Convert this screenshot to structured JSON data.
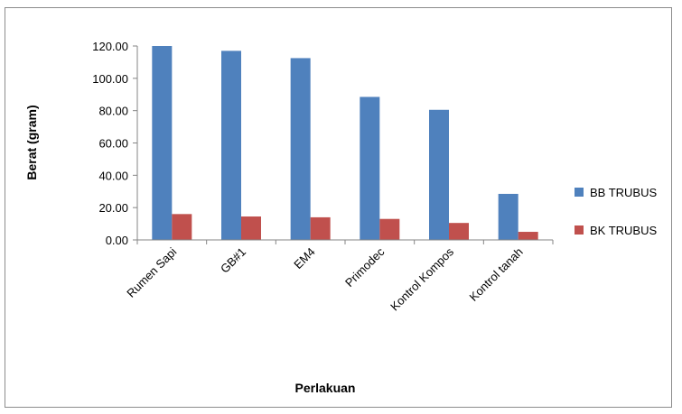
{
  "chart_data": {
    "type": "bar",
    "title": "",
    "xlabel": "Perlakuan",
    "ylabel": "Berat (gram)",
    "ylim": [
      0,
      120
    ],
    "yticks": [
      "0.00",
      "20.00",
      "40.00",
      "60.00",
      "80.00",
      "100.00",
      "120.00"
    ],
    "categories": [
      "Rumen Sapi",
      "GB#1",
      "EM4",
      "Primodec",
      "Kontrol Kompos",
      "Kontrol tanah"
    ],
    "series": [
      {
        "name": "BB TRUBUS",
        "color": "#4f81bd",
        "values": [
          120.0,
          117.0,
          112.5,
          88.5,
          80.5,
          28.5
        ]
      },
      {
        "name": "BK TRUBUS",
        "color": "#c0504d",
        "values": [
          16.0,
          14.5,
          14.0,
          13.0,
          10.5,
          5.0
        ]
      }
    ],
    "grid": false,
    "legend": "right"
  }
}
